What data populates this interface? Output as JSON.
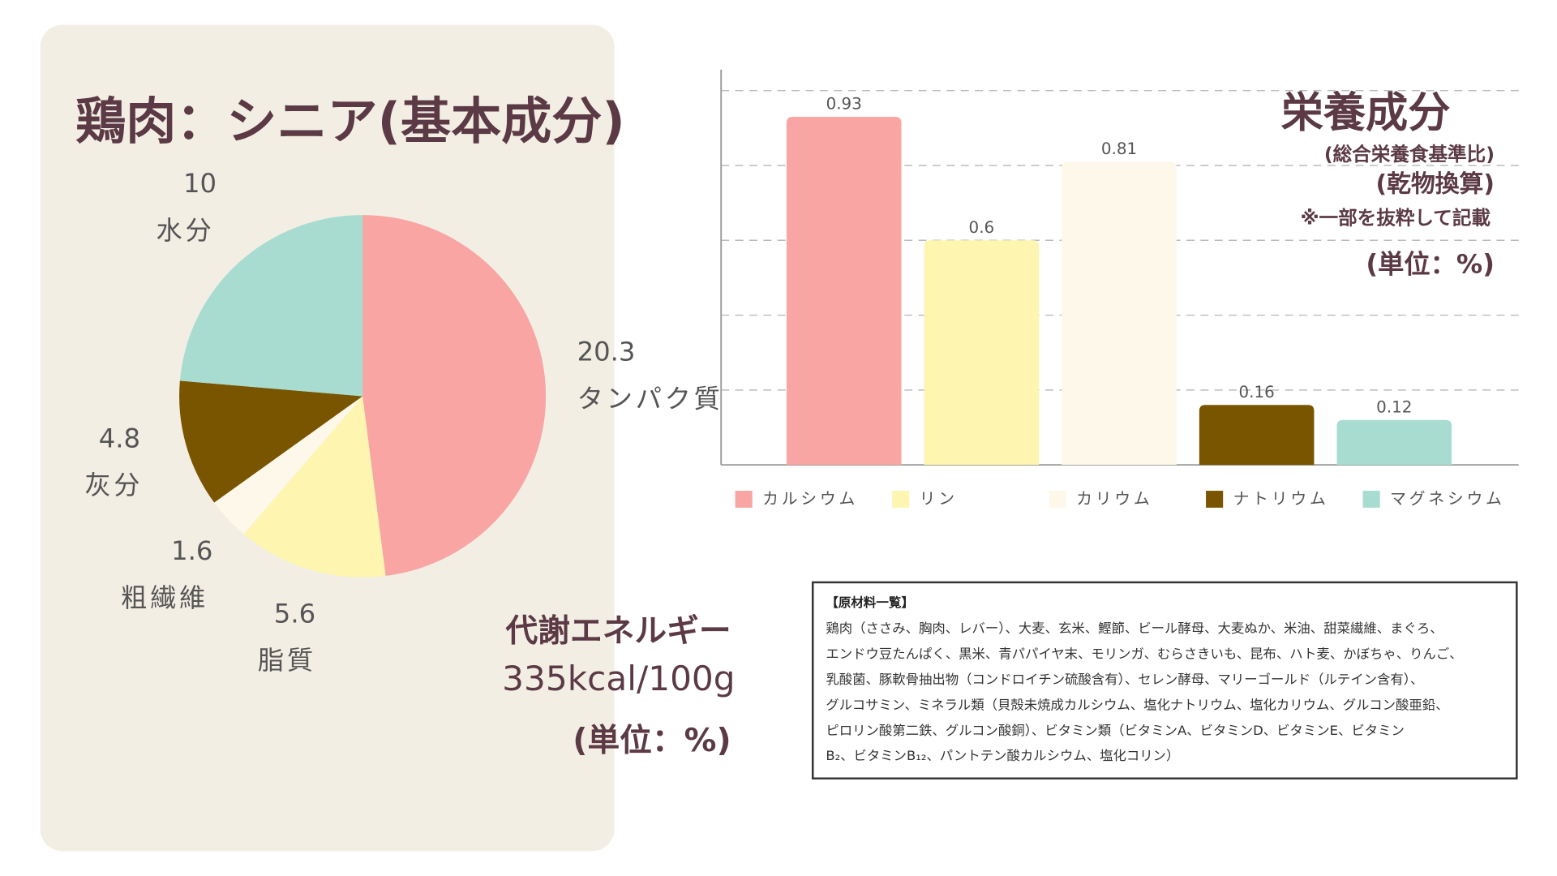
{
  "chart_data": [
    {
      "type": "pie",
      "title": "鶏肉：シニア(基本成分)",
      "categories": [
        "タンパク質",
        "脂質",
        "粗繊維",
        "灰分",
        "水分"
      ],
      "values": [
        20.3,
        5.6,
        1.6,
        4.8,
        10
      ],
      "colors": [
        "#f8a5a3",
        "#fdf5b0",
        "#fdf8ea",
        "#7a5500",
        "#a8dcd1"
      ],
      "energy_label": "代謝エネルギー",
      "energy_value": "335kcal/100g",
      "unit_note": "(単位：%)"
    },
    {
      "type": "bar",
      "title": "栄養成分",
      "subtitles": [
        "(総合栄養食基準比)",
        "(乾物換算)"
      ],
      "annotation": "※一部を抜粋して記載",
      "unit_note": "(単位：%)",
      "categories": [
        "カルシウム",
        "リン",
        "カリウム",
        "ナトリウム",
        "マグネシウム"
      ],
      "values": [
        0.93,
        0.6,
        0.81,
        0.16,
        0.12
      ],
      "colors": [
        "#f8a5a3",
        "#fdf5b0",
        "#fdf8ea",
        "#7a5500",
        "#a8dcd1"
      ],
      "ylim": [
        0,
        1
      ],
      "yticks": [
        0,
        0.2,
        0.4,
        0.6,
        0.8,
        1
      ],
      "grid": true,
      "legend": "bottom"
    }
  ],
  "ingredients": {
    "header": "【原材料一覧】",
    "lines": [
      "鶏肉（ささみ、胸肉、レバー）、大麦、玄米、鰹節、ビール酵母、大麦ぬか、米油、甜菜繊維、まぐろ、",
      "エンドウ豆たんぱく、黒米、青パパイヤ末、モリンガ、むらさきいも、昆布、ハト麦、かぼちゃ、りんご、",
      "乳酸菌、豚軟骨抽出物（コンドロイチン硫酸含有）、セレン酵母、マリーゴールド（ルテイン含有）、",
      "グルコサミン、ミネラル類（貝殻未焼成カルシウム、塩化ナトリウム、塩化カリウム、グルコン酸亜鉛、",
      "ピロリン酸第二鉄、グルコン酸銅）、ビタミン類（ビタミンA、ビタミンD、ビタミンE、ビタミン",
      "B₂、ビタミンB₁₂、パントテン酸カルシウム、塩化コリン）"
    ]
  }
}
